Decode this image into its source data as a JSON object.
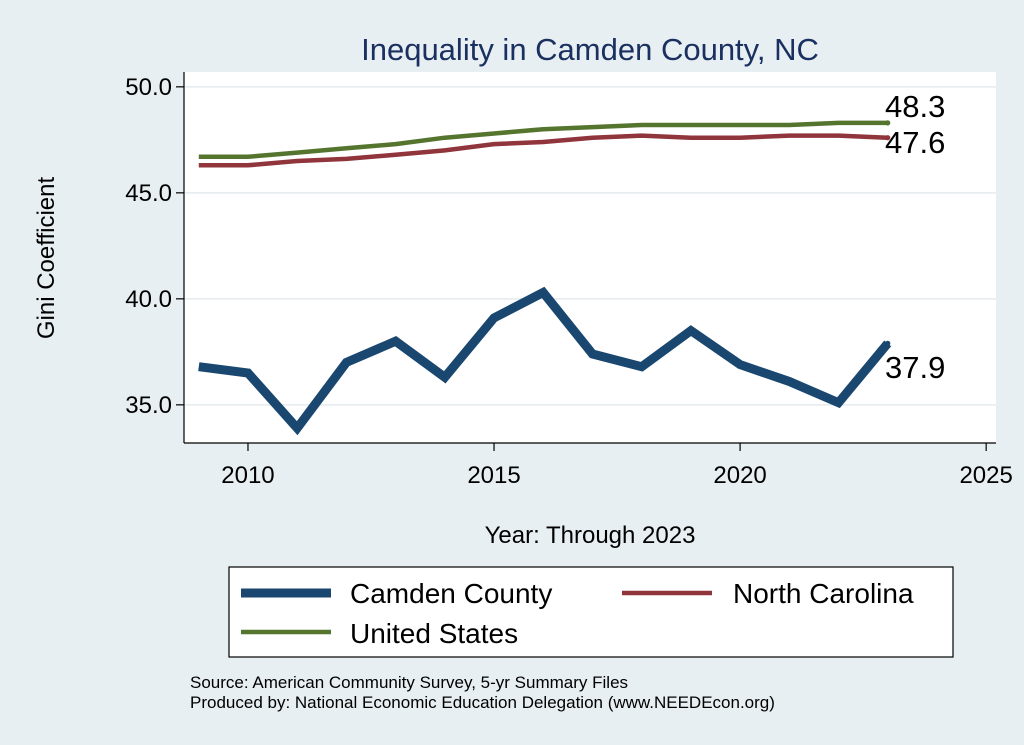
{
  "chart_data": {
    "type": "line",
    "title": "Inequality in Camden County, NC",
    "xlabel": "Year: Through 2023",
    "ylabel": "Gini Coefficient",
    "xlim": [
      2008.7,
      2025.2
    ],
    "ylim": [
      33.2,
      50.7
    ],
    "x_ticks": [
      2010,
      2015,
      2020,
      2025
    ],
    "x_tick_labels": [
      "2010",
      "2015",
      "2020",
      "2025"
    ],
    "y_ticks": [
      35,
      40,
      45,
      50
    ],
    "y_tick_labels": [
      "35.0",
      "40.0",
      "45.0",
      "50.0"
    ],
    "grid": true,
    "legend_position": "bottom",
    "x": [
      2009,
      2010,
      2011,
      2012,
      2013,
      2014,
      2015,
      2016,
      2017,
      2018,
      2019,
      2020,
      2021,
      2022,
      2023
    ],
    "series": [
      {
        "name": "Camden County",
        "color": "#1a476f",
        "width": "thick",
        "values": [
          36.8,
          36.5,
          33.9,
          37.0,
          38.0,
          36.3,
          39.1,
          40.3,
          37.4,
          36.8,
          38.5,
          36.9,
          36.1,
          35.1,
          37.9
        ],
        "end_label": "37.9"
      },
      {
        "name": "North Carolina",
        "color": "#90353b",
        "width": "medium",
        "values": [
          46.3,
          46.3,
          46.5,
          46.6,
          46.8,
          47.0,
          47.3,
          47.4,
          47.6,
          47.7,
          47.6,
          47.6,
          47.7,
          47.7,
          47.6
        ],
        "end_label": "47.6"
      },
      {
        "name": "United States",
        "color": "#55752f",
        "width": "medium",
        "values": [
          46.7,
          46.7,
          46.9,
          47.1,
          47.3,
          47.6,
          47.8,
          48.0,
          48.1,
          48.2,
          48.2,
          48.2,
          48.2,
          48.3,
          48.3
        ],
        "end_label": "48.3"
      }
    ]
  },
  "source_note": "Source: American Community Survey, 5-yr Summary Files",
  "produced_note": "Produced by: National Economic Education Delegation (www.NEEDEcon.org)"
}
